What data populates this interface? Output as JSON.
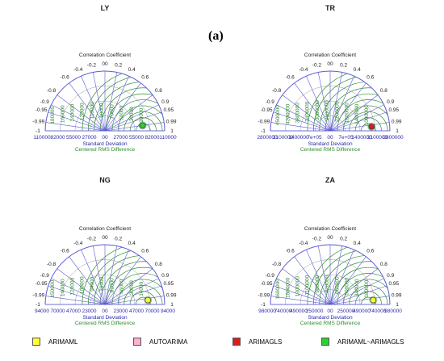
{
  "figure_label": "(a)",
  "labels": {
    "correlation": "Correlation Coefficient",
    "std": "Standard Deviation",
    "crmsd": "Centered RMS Difference"
  },
  "colors": {
    "arc": "#5b5bd6",
    "rms": "#2e8b2e",
    "axis_text": "#2a2aa8",
    "grid_gray": "#9a9a9a",
    "ARIMAML": "#ffff33",
    "AUTOARIMA": "#ffb0d0",
    "ARIMAGLS": "#d42020",
    "ARIMAML-ARIMAGLS": "#33cc33"
  },
  "corr_ticks": [
    "-1",
    "-0.99",
    "-0.95",
    "-0.9",
    "-0.8",
    "-0.6",
    "-0.4",
    "-0.2",
    "00",
    "0.2",
    "0.4",
    "0.6",
    "0.8",
    "0.9",
    "0.95",
    "0.99",
    "1"
  ],
  "corr_values": [
    -1,
    -0.99,
    -0.95,
    -0.9,
    -0.8,
    -0.6,
    -0.4,
    -0.2,
    0,
    0.2,
    0.4,
    0.6,
    0.8,
    0.9,
    0.95,
    0.99,
    1
  ],
  "legend": [
    {
      "name": "ARIMAML",
      "color_key": "ARIMAML"
    },
    {
      "name": "AUTOARIMA",
      "color_key": "AUTOARIMA"
    },
    {
      "name": "ARIMAGLS",
      "color_key": "ARIMAGLS"
    },
    {
      "name": "ARIMAML~ARIMAGLS",
      "color_key": "ARIMAML-ARIMAGLS"
    }
  ],
  "chart_data": [
    {
      "type": "taylor",
      "title": "LY",
      "std_max": 110000,
      "std_ticks": [
        "110000",
        "82000",
        "55000",
        "27000",
        "00",
        "27000",
        "55000",
        "82000",
        "110000"
      ],
      "rms_labels": [
        "180000",
        "160000",
        "140000",
        "120000",
        "110000",
        "90000",
        "70000",
        "50000",
        "30000",
        "10000"
      ],
      "points": [
        {
          "series": "ARIMAML~ARIMAGLS",
          "std": 70000,
          "corr": 0.99
        }
      ]
    },
    {
      "type": "taylor",
      "title": "TR",
      "std_max": 2800000,
      "std_ticks": [
        "2800000",
        "2100000",
        "1400000",
        "7e+05",
        "00",
        "7e+05",
        "1400000",
        "2100000",
        "2800000"
      ],
      "rms_labels": [
        "4500000",
        "4200000",
        "3800000",
        "3400000",
        "3000000",
        "2600000",
        "2200000",
        "1800000",
        "1400000",
        "1000000"
      ],
      "points": [
        {
          "series": "ARIMAGLS",
          "std": 1950000,
          "corr": 0.995
        }
      ]
    },
    {
      "type": "taylor",
      "title": "NG",
      "std_max": 94000,
      "std_ticks": [
        "94000",
        "70000",
        "47000",
        "23000",
        "00",
        "23000",
        "47000",
        "70000",
        "94000"
      ],
      "rms_labels": [
        "150000",
        "140000",
        "120000",
        "100000",
        "94000",
        "78000",
        "62000",
        "46000",
        "30000",
        "14000"
      ],
      "points": [
        {
          "series": "ARIMAML",
          "std": 68000,
          "corr": 0.995
        }
      ]
    },
    {
      "type": "taylor",
      "title": "ZA",
      "std_max": 980000,
      "std_ticks": [
        "980000",
        "740000",
        "490000",
        "250000",
        "00",
        "250000",
        "490000",
        "740000",
        "980000"
      ],
      "rms_labels": [
        "1600000",
        "1500000",
        "1300000",
        "1100000",
        "980000",
        "820000",
        "660000",
        "500000",
        "340000",
        "180000"
      ],
      "points": [
        {
          "series": "ARIMAML",
          "std": 710000,
          "corr": 0.995
        }
      ]
    }
  ]
}
